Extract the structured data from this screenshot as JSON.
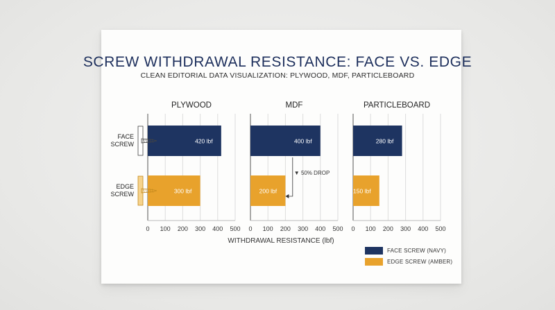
{
  "title": "SCREW WITHDRAWAL RESISTANCE: FACE VS. EDGE",
  "subtitle": "CLEAN EDITORIAL DATA VISUALIZATION: PLYWOOD, MDF, PARTICLEBOARD",
  "colors": {
    "face": "#1e3461",
    "edge": "#e8a22c",
    "grid": "#dcdcdc",
    "axis": "#555555"
  },
  "icons": [
    "face-screw-icon",
    "edge-screw-icon"
  ],
  "chart_data": {
    "type": "bar",
    "orientation": "horizontal",
    "xlabel": "WITHDRAWAL RESISTANCE (lbf)",
    "categories": [
      "FACE SCREW",
      "EDGE SCREW"
    ],
    "xlim": [
      0,
      500
    ],
    "xticks": [
      0,
      100,
      200,
      300,
      400,
      500
    ],
    "grid": true,
    "unit": "lbf",
    "panels": [
      {
        "title": "PLYWOOD",
        "values": [
          420,
          300
        ]
      },
      {
        "title": "MDF",
        "values": [
          400,
          200
        ],
        "annotation": "▼ 50% DROP"
      },
      {
        "title": "PARTICLEBOARD",
        "values": [
          280,
          150
        ]
      }
    ],
    "series": [
      {
        "name": "FACE SCREW (NAVY)",
        "color": "#1e3461"
      },
      {
        "name": "EDGE SCREW (AMBER)",
        "color": "#e8a22c"
      }
    ],
    "legend_position": "bottom-right"
  }
}
